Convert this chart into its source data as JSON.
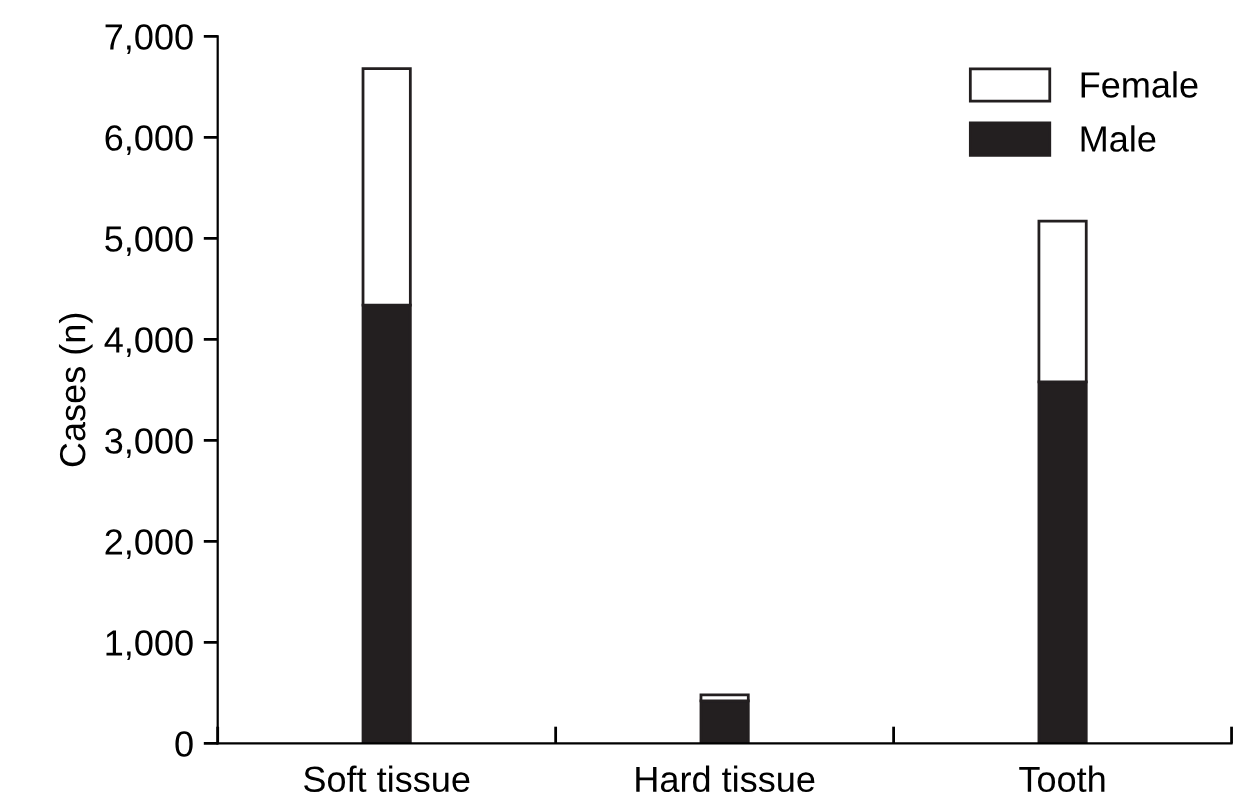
{
  "chart_data": {
    "type": "bar",
    "stacked": true,
    "ylabel": "Cases (n)",
    "categories": [
      "Soft tissue",
      "Hard tissue",
      "Tooth"
    ],
    "series": [
      {
        "name": "Male",
        "color": "#231f20",
        "values": [
          4340,
          420,
          3580
        ]
      },
      {
        "name": "Female",
        "color": "#ffffff",
        "values": [
          2340,
          60,
          1590
        ]
      }
    ],
    "ylim": [
      0,
      7000
    ],
    "yticks": [
      {
        "value": 0,
        "label": "0"
      },
      {
        "value": 1000,
        "label": "1,000"
      },
      {
        "value": 2000,
        "label": "2,000"
      },
      {
        "value": 3000,
        "label": "3,000"
      },
      {
        "value": 4000,
        "label": "4,000"
      },
      {
        "value": 5000,
        "label": "5,000"
      },
      {
        "value": 6000,
        "label": "6,000"
      },
      {
        "value": 7000,
        "label": "7,000"
      }
    ],
    "grid": false,
    "legend": "top right"
  }
}
